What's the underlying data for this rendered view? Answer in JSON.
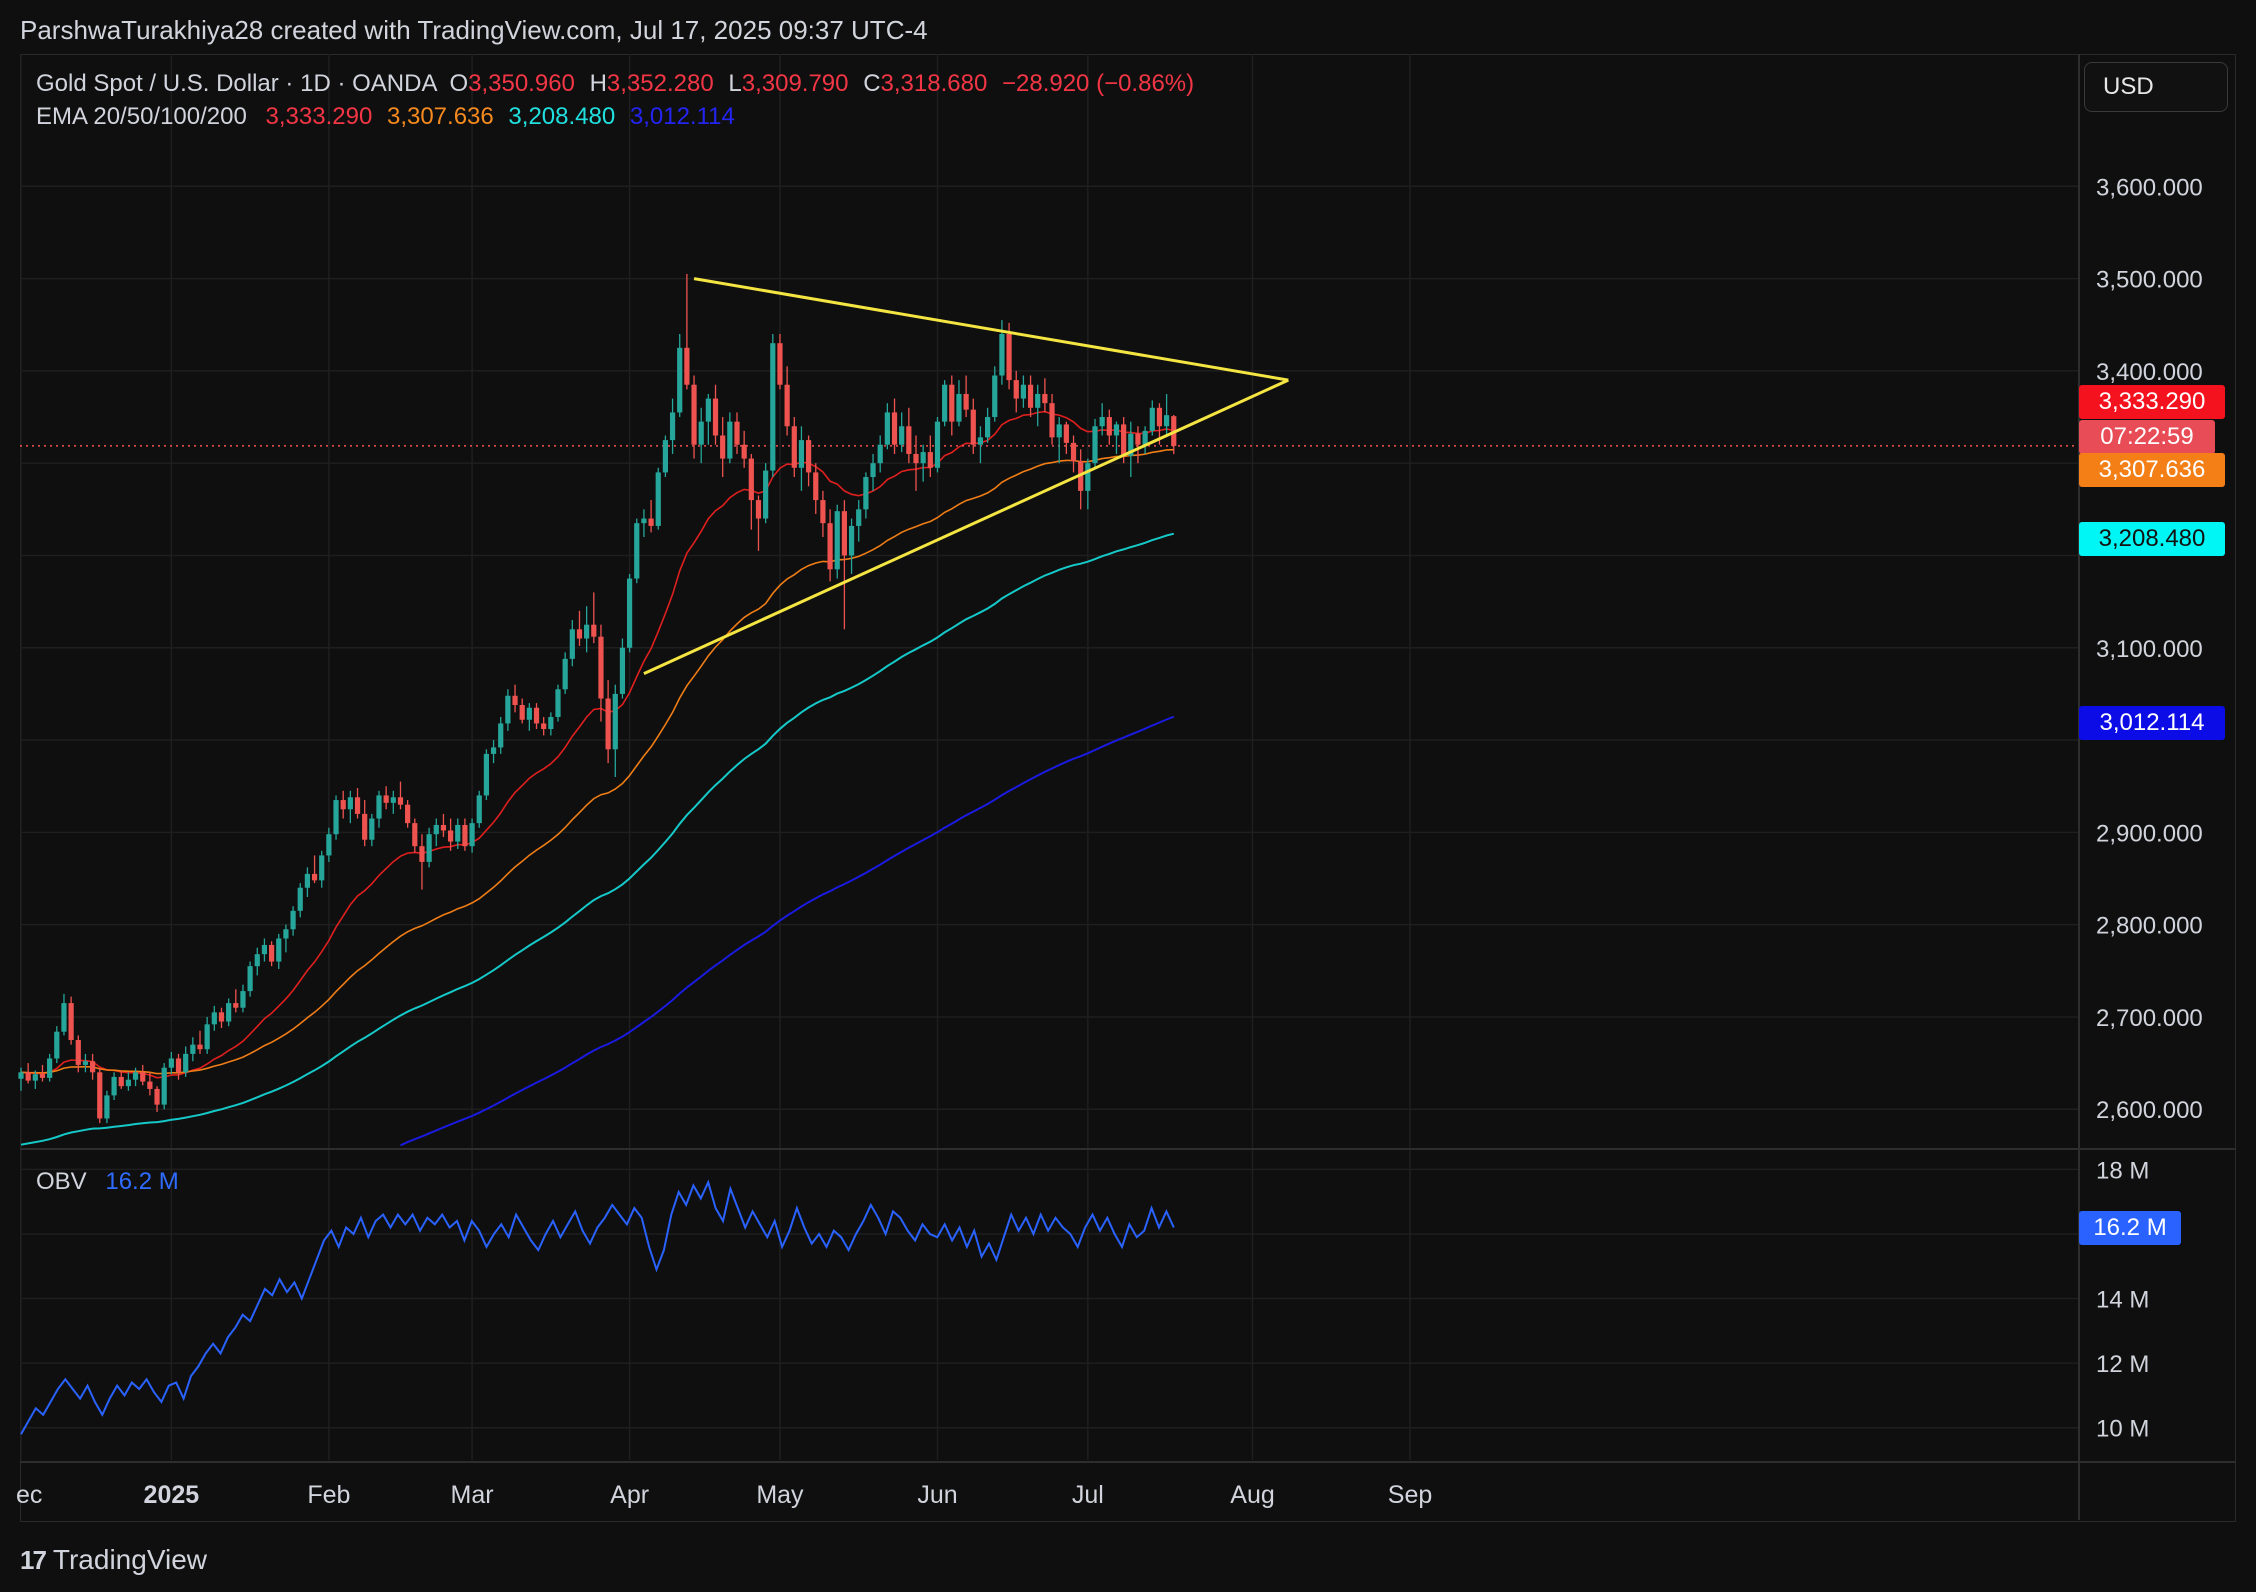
{
  "header": {
    "caption": "ParshwaTurakhiya28 created with TradingView.com, Jul 17, 2025 09:37 UTC-4"
  },
  "legend": {
    "symbol": "Gold Spot / U.S. Dollar · 1D · OANDA",
    "o_label": "O",
    "o_value": "3,350.960",
    "h_label": "H",
    "h_value": "3,352.280",
    "l_label": "L",
    "l_value": "3,309.790",
    "c_label": "C",
    "c_value": "3,318.680",
    "change": "−28.920 (−0.86%)",
    "ema_label": "EMA 20/50/100/200",
    "ema20": "3,333.290",
    "ema50": "3,307.636",
    "ema100": "3,208.480",
    "ema200": "3,012.114"
  },
  "obv_legend": {
    "label": "OBV",
    "value": "16.2 M"
  },
  "currency_button": "USD",
  "price_tags": {
    "ema20": "3,333.290",
    "countdown": "07:22:59",
    "ema50": "3,307.636",
    "ema100": "3,208.480",
    "ema200": "3,012.114",
    "obv": "16.2 M"
  },
  "colors": {
    "background": "#0f0f0f",
    "up": "#26a69a",
    "down": "#ef5350",
    "ema20": "#e01f1f",
    "ema50": "#f07d16",
    "ema100": "#16c9c9",
    "ema200": "#1a1ae0",
    "trendline": "#f4e542",
    "obv": "#2962ff"
  },
  "footer": {
    "brand": "TradingView"
  },
  "chart_data": {
    "type": "candlestick",
    "price_axis": {
      "ticks": [
        "3,600.000",
        "3,500.000",
        "3,400.000",
        "3,100.000",
        "2,900.000",
        "2,800.000",
        "2,700.000",
        "2,600.000"
      ],
      "tick_values": [
        3600,
        3500,
        3400,
        3100,
        2900,
        2800,
        2700,
        2600
      ],
      "range": [
        2558,
        3700
      ]
    },
    "obv_axis": {
      "ticks": [
        "18 M",
        "14 M",
        "12 M",
        "10 M"
      ],
      "tick_values": [
        18,
        14,
        12,
        10
      ],
      "range": [
        9,
        18.6
      ]
    },
    "time_axis": {
      "labels": [
        "ec",
        "2025",
        "Feb",
        "Mar",
        "Apr",
        "May",
        "Jun",
        "Jul",
        "Aug",
        "Sep"
      ],
      "label_index": [
        0,
        21,
        43,
        63,
        85,
        106,
        128,
        149,
        172,
        194
      ]
    },
    "last_close": 3318.68,
    "candles": [
      [
        2633,
        2645,
        2620,
        2640
      ],
      [
        2640,
        2650,
        2628,
        2631
      ],
      [
        2631,
        2642,
        2622,
        2638
      ],
      [
        2638,
        2648,
        2630,
        2634
      ],
      [
        2634,
        2660,
        2630,
        2655
      ],
      [
        2655,
        2690,
        2650,
        2684
      ],
      [
        2684,
        2725,
        2680,
        2715
      ],
      [
        2715,
        2722,
        2670,
        2675
      ],
      [
        2675,
        2680,
        2640,
        2648
      ],
      [
        2648,
        2660,
        2640,
        2652
      ],
      [
        2652,
        2660,
        2632,
        2640
      ],
      [
        2640,
        2645,
        2585,
        2590
      ],
      [
        2590,
        2620,
        2585,
        2615
      ],
      [
        2615,
        2640,
        2610,
        2635
      ],
      [
        2635,
        2642,
        2622,
        2625
      ],
      [
        2625,
        2640,
        2620,
        2632
      ],
      [
        2632,
        2645,
        2625,
        2640
      ],
      [
        2640,
        2648,
        2626,
        2630
      ],
      [
        2630,
        2640,
        2615,
        2622
      ],
      [
        2622,
        2625,
        2597,
        2605
      ],
      [
        2605,
        2650,
        2600,
        2645
      ],
      [
        2645,
        2662,
        2638,
        2655
      ],
      [
        2655,
        2660,
        2632,
        2640
      ],
      [
        2640,
        2668,
        2635,
        2660
      ],
      [
        2660,
        2678,
        2652,
        2670
      ],
      [
        2670,
        2685,
        2660,
        2665
      ],
      [
        2665,
        2700,
        2660,
        2692
      ],
      [
        2692,
        2712,
        2685,
        2705
      ],
      [
        2705,
        2710,
        2688,
        2695
      ],
      [
        2695,
        2720,
        2690,
        2715
      ],
      [
        2715,
        2730,
        2705,
        2710
      ],
      [
        2710,
        2735,
        2705,
        2728
      ],
      [
        2728,
        2760,
        2722,
        2755
      ],
      [
        2755,
        2775,
        2745,
        2768
      ],
      [
        2768,
        2785,
        2760,
        2778
      ],
      [
        2778,
        2782,
        2755,
        2760
      ],
      [
        2760,
        2790,
        2752,
        2785
      ],
      [
        2785,
        2800,
        2770,
        2795
      ],
      [
        2795,
        2820,
        2788,
        2815
      ],
      [
        2815,
        2845,
        2808,
        2840
      ],
      [
        2840,
        2862,
        2830,
        2855
      ],
      [
        2855,
        2875,
        2845,
        2848
      ],
      [
        2848,
        2880,
        2840,
        2875
      ],
      [
        2875,
        2905,
        2868,
        2898
      ],
      [
        2898,
        2940,
        2892,
        2935
      ],
      [
        2935,
        2945,
        2915,
        2925
      ],
      [
        2925,
        2945,
        2910,
        2938
      ],
      [
        2938,
        2948,
        2915,
        2920
      ],
      [
        2920,
        2935,
        2885,
        2892
      ],
      [
        2892,
        2920,
        2885,
        2915
      ],
      [
        2915,
        2945,
        2905,
        2940
      ],
      [
        2940,
        2950,
        2925,
        2932
      ],
      [
        2932,
        2945,
        2920,
        2938
      ],
      [
        2938,
        2955,
        2925,
        2930
      ],
      [
        2930,
        2935,
        2905,
        2910
      ],
      [
        2910,
        2915,
        2878,
        2885
      ],
      [
        2885,
        2898,
        2838,
        2868
      ],
      [
        2868,
        2905,
        2862,
        2898
      ],
      [
        2898,
        2915,
        2885,
        2908
      ],
      [
        2908,
        2920,
        2895,
        2902
      ],
      [
        2902,
        2915,
        2880,
        2890
      ],
      [
        2890,
        2915,
        2882,
        2908
      ],
      [
        2908,
        2915,
        2880,
        2885
      ],
      [
        2885,
        2915,
        2878,
        2910
      ],
      [
        2910,
        2945,
        2905,
        2940
      ],
      [
        2940,
        2990,
        2935,
        2985
      ],
      [
        2985,
        3000,
        2975,
        2992
      ],
      [
        2992,
        3025,
        2985,
        3018
      ],
      [
        3018,
        3055,
        3010,
        3048
      ],
      [
        3048,
        3060,
        3030,
        3038
      ],
      [
        3038,
        3045,
        3018,
        3022
      ],
      [
        3022,
        3040,
        3010,
        3035
      ],
      [
        3035,
        3040,
        3012,
        3018
      ],
      [
        3018,
        3025,
        3005,
        3012
      ],
      [
        3012,
        3030,
        3005,
        3025
      ],
      [
        3025,
        3060,
        3020,
        3055
      ],
      [
        3055,
        3095,
        3050,
        3088
      ],
      [
        3088,
        3130,
        3080,
        3120
      ],
      [
        3120,
        3140,
        3102,
        3110
      ],
      [
        3110,
        3145,
        3095,
        3125
      ],
      [
        3125,
        3160,
        3105,
        3112
      ],
      [
        3112,
        3125,
        3020,
        3045
      ],
      [
        3045,
        3065,
        2975,
        2990
      ],
      [
        2990,
        3060,
        2960,
        3050
      ],
      [
        3050,
        3110,
        3045,
        3100
      ],
      [
        3100,
        3180,
        3095,
        3175
      ],
      [
        3175,
        3240,
        3170,
        3235
      ],
      [
        3235,
        3250,
        3220,
        3240
      ],
      [
        3240,
        3260,
        3225,
        3232
      ],
      [
        3232,
        3295,
        3228,
        3290
      ],
      [
        3290,
        3330,
        3285,
        3325
      ],
      [
        3325,
        3370,
        3310,
        3355
      ],
      [
        3355,
        3440,
        3350,
        3425
      ],
      [
        3425,
        3505,
        3380,
        3385
      ],
      [
        3385,
        3395,
        3305,
        3320
      ],
      [
        3320,
        3360,
        3300,
        3345
      ],
      [
        3345,
        3375,
        3320,
        3370
      ],
      [
        3370,
        3385,
        3320,
        3330
      ],
      [
        3330,
        3350,
        3285,
        3305
      ],
      [
        3305,
        3355,
        3300,
        3345
      ],
      [
        3345,
        3355,
        3310,
        3320
      ],
      [
        3320,
        3335,
        3295,
        3305
      ],
      [
        3305,
        3310,
        3228,
        3260
      ],
      [
        3260,
        3265,
        3205,
        3240
      ],
      [
        3240,
        3300,
        3235,
        3292
      ],
      [
        3292,
        3440,
        3285,
        3430
      ],
      [
        3430,
        3440,
        3380,
        3385
      ],
      [
        3385,
        3405,
        3330,
        3340
      ],
      [
        3340,
        3350,
        3285,
        3295
      ],
      [
        3295,
        3340,
        3270,
        3325
      ],
      [
        3325,
        3330,
        3275,
        3290
      ],
      [
        3290,
        3300,
        3245,
        3260
      ],
      [
        3260,
        3270,
        3220,
        3235
      ],
      [
        3235,
        3250,
        3172,
        3185
      ],
      [
        3185,
        3255,
        3175,
        3248
      ],
      [
        3248,
        3260,
        3120,
        3200
      ],
      [
        3200,
        3240,
        3180,
        3232
      ],
      [
        3232,
        3260,
        3215,
        3250
      ],
      [
        3250,
        3290,
        3240,
        3285
      ],
      [
        3285,
        3310,
        3270,
        3300
      ],
      [
        3300,
        3330,
        3290,
        3320
      ],
      [
        3320,
        3365,
        3315,
        3355
      ],
      [
        3355,
        3370,
        3310,
        3320
      ],
      [
        3320,
        3355,
        3312,
        3340
      ],
      [
        3340,
        3360,
        3300,
        3310
      ],
      [
        3310,
        3330,
        3270,
        3300
      ],
      [
        3300,
        3320,
        3280,
        3312
      ],
      [
        3312,
        3330,
        3285,
        3295
      ],
      [
        3295,
        3350,
        3290,
        3345
      ],
      [
        3345,
        3390,
        3340,
        3385
      ],
      [
        3385,
        3395,
        3330,
        3345
      ],
      [
        3345,
        3390,
        3340,
        3375
      ],
      [
        3375,
        3395,
        3350,
        3358
      ],
      [
        3358,
        3370,
        3310,
        3320
      ],
      [
        3320,
        3340,
        3300,
        3328
      ],
      [
        3328,
        3360,
        3322,
        3350
      ],
      [
        3350,
        3405,
        3345,
        3395
      ],
      [
        3395,
        3455,
        3385,
        3440
      ],
      [
        3440,
        3452,
        3380,
        3390
      ],
      [
        3390,
        3400,
        3355,
        3370
      ],
      [
        3370,
        3395,
        3360,
        3385
      ],
      [
        3385,
        3395,
        3350,
        3360
      ],
      [
        3360,
        3385,
        3340,
        3375
      ],
      [
        3375,
        3392,
        3355,
        3365
      ],
      [
        3365,
        3375,
        3320,
        3328
      ],
      [
        3328,
        3350,
        3300,
        3342
      ],
      [
        3342,
        3345,
        3310,
        3322
      ],
      [
        3322,
        3330,
        3290,
        3302
      ],
      [
        3302,
        3315,
        3250,
        3270
      ],
      [
        3270,
        3305,
        3250,
        3300
      ],
      [
        3300,
        3348,
        3295,
        3340
      ],
      [
        3340,
        3365,
        3330,
        3350
      ],
      [
        3350,
        3358,
        3320,
        3330
      ],
      [
        3330,
        3345,
        3310,
        3342
      ],
      [
        3342,
        3350,
        3300,
        3308
      ],
      [
        3308,
        3345,
        3285,
        3332
      ],
      [
        3332,
        3340,
        3300,
        3320
      ],
      [
        3320,
        3340,
        3310,
        3335
      ],
      [
        3335,
        3368,
        3330,
        3360
      ],
      [
        3360,
        3365,
        3320,
        3340
      ],
      [
        3340,
        3375,
        3330,
        3352
      ],
      [
        3350.96,
        3352.28,
        3309.79,
        3318.68
      ]
    ],
    "ema": [
      {
        "name": "EMA 20",
        "period": 20
      },
      {
        "name": "EMA 50",
        "period": 50
      },
      {
        "name": "EMA 100",
        "period": 100,
        "seed": 2560
      },
      {
        "name": "EMA 200",
        "period": 200,
        "seed": 2420
      }
    ],
    "obv": [
      9.8,
      10.2,
      10.6,
      10.4,
      10.8,
      11.2,
      11.5,
      11.2,
      10.9,
      11.3,
      10.8,
      10.4,
      10.9,
      11.3,
      11.0,
      11.4,
      11.2,
      11.5,
      11.1,
      10.8,
      11.3,
      11.4,
      10.9,
      11.6,
      11.9,
      12.3,
      12.6,
      12.3,
      12.8,
      13.1,
      13.5,
      13.3,
      13.8,
      14.3,
      14.1,
      14.6,
      14.2,
      14.5,
      14.0,
      14.6,
      15.2,
      15.8,
      16.1,
      15.6,
      16.2,
      16.0,
      16.5,
      15.9,
      16.4,
      16.6,
      16.2,
      16.6,
      16.3,
      16.6,
      16.1,
      16.5,
      16.3,
      16.6,
      16.2,
      16.4,
      15.8,
      16.4,
      16.1,
      15.6,
      16.0,
      16.3,
      15.9,
      16.6,
      16.2,
      15.8,
      15.5,
      16.0,
      16.4,
      15.9,
      16.3,
      16.7,
      16.1,
      15.7,
      16.2,
      16.5,
      16.9,
      16.6,
      16.3,
      16.8,
      16.5,
      15.6,
      14.9,
      15.5,
      16.6,
      17.3,
      16.9,
      17.5,
      17.1,
      17.6,
      16.8,
      16.4,
      17.4,
      16.8,
      16.2,
      16.7,
      16.3,
      15.9,
      16.4,
      15.6,
      16.1,
      16.8,
      16.2,
      15.7,
      16.0,
      15.6,
      16.1,
      15.9,
      15.5,
      16.0,
      16.4,
      16.9,
      16.5,
      16.0,
      16.7,
      16.5,
      16.1,
      15.8,
      16.3,
      16.0,
      15.9,
      16.3,
      15.8,
      16.2,
      15.6,
      16.1,
      15.3,
      15.7,
      15.2,
      15.9,
      16.6,
      16.1,
      16.5,
      16.0,
      16.6,
      16.1,
      16.5,
      16.2,
      16.0,
      15.6,
      16.2,
      16.6,
      16.1,
      16.5,
      16.0,
      15.6,
      16.3,
      15.9,
      16.1,
      16.8,
      16.2,
      16.7,
      16.2
    ]
  }
}
